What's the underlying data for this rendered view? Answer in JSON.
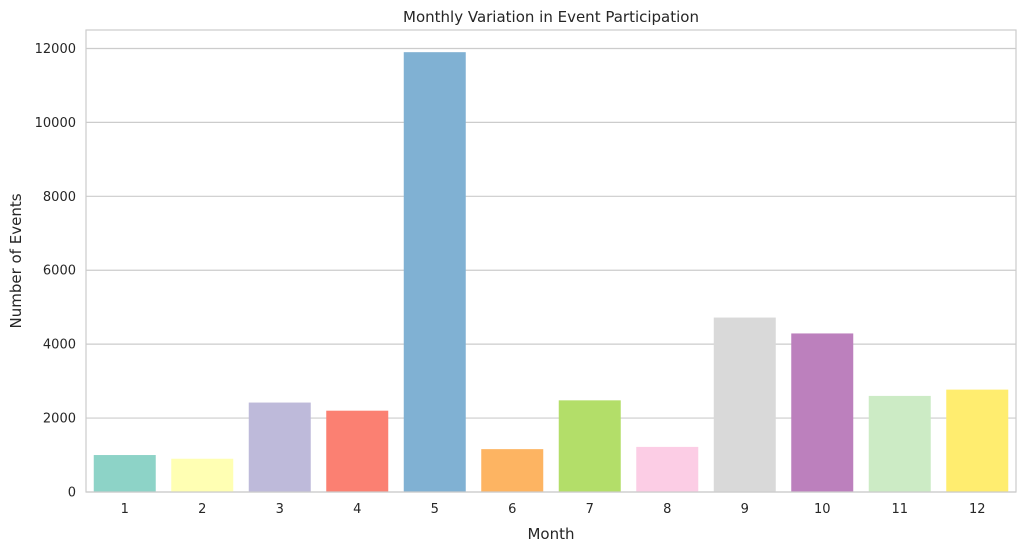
{
  "chart_data": {
    "type": "bar",
    "title": "Monthly Variation in Event Participation",
    "xlabel": "Month",
    "ylabel": "Number of Events",
    "categories": [
      "1",
      "2",
      "3",
      "4",
      "5",
      "6",
      "7",
      "8",
      "9",
      "10",
      "11",
      "12"
    ],
    "values": [
      1000,
      900,
      2420,
      2200,
      11900,
      1160,
      2480,
      1220,
      4720,
      4290,
      2600,
      2770
    ],
    "colors": [
      "#8dd3c7",
      "#ffffb3",
      "#bebada",
      "#fb8072",
      "#80b1d3",
      "#fdb462",
      "#b3de69",
      "#fccde5",
      "#d9d9d9",
      "#bc80bd",
      "#ccebc5",
      "#ffed6f"
    ],
    "ylim": [
      0,
      12500
    ],
    "yticks": [
      0,
      2000,
      4000,
      6000,
      8000,
      10000,
      12000
    ],
    "grid": true,
    "legend": "none"
  }
}
